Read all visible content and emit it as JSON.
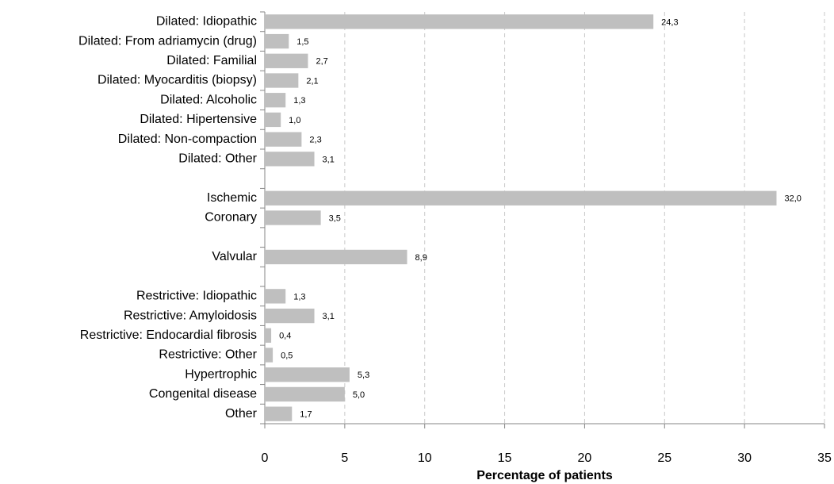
{
  "chart_data": {
    "type": "bar",
    "orientation": "horizontal",
    "categories": [
      "Dilated: Idiopathic",
      "Dilated: From adriamycin (drug)",
      "Dilated: Familial",
      "Dilated: Myocarditis (biopsy)",
      "Dilated: Alcoholic",
      "Dilated: Hipertensive",
      "Dilated: Non-compaction",
      "Dilated: Other",
      null,
      "Ischemic",
      "Coronary",
      null,
      "Valvular",
      null,
      "Restrictive: Idiopathic",
      "Restrictive: Amyloidosis",
      "Restrictive: Endocardial fibrosis",
      "Restrictive: Other",
      "Hypertrophic",
      "Congenital disease",
      "Other"
    ],
    "values": [
      24.3,
      1.5,
      2.7,
      2.1,
      1.3,
      1.0,
      2.3,
      3.1,
      null,
      32.0,
      3.5,
      null,
      8.9,
      null,
      1.3,
      3.1,
      0.4,
      0.5,
      5.3,
      5.0,
      1.7
    ],
    "value_labels": [
      "24,3",
      "1,5",
      "2,7",
      "2,1",
      "1,3",
      "1,0",
      "2,3",
      "3,1",
      null,
      "32,0",
      "3,5",
      null,
      "8,9",
      null,
      "1,3",
      "3,1",
      "0,4",
      "0,5",
      "5,3",
      "5,0",
      "1,7"
    ],
    "color": "#bfbfbf",
    "xlim": [
      0,
      35
    ],
    "xticks": [
      0,
      5,
      10,
      15,
      20,
      25,
      30,
      35
    ],
    "x_label": "Percentage of patients",
    "grid": true
  }
}
